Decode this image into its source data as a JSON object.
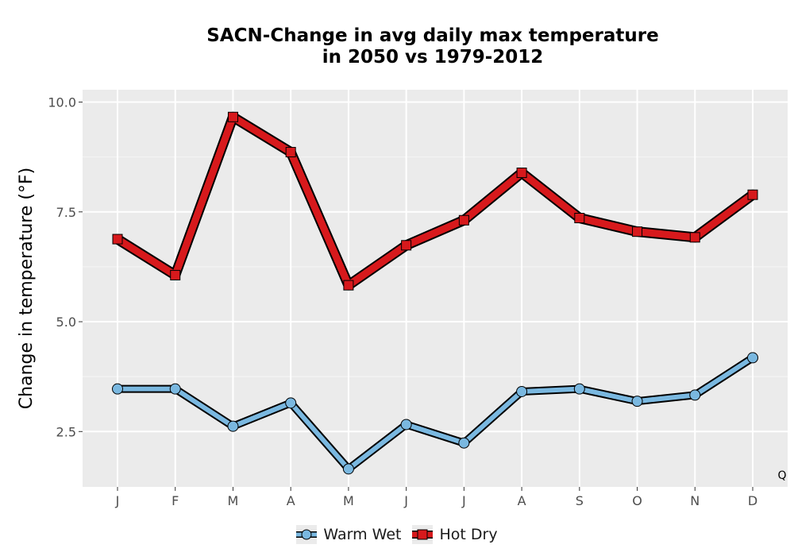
{
  "chart_data": {
    "type": "line",
    "title_lines": [
      "SACN-Change in avg daily max temperature",
      "in 2050 vs 1979-2012"
    ],
    "xlabel": "",
    "ylabel": "Change in temperature (°F)",
    "categories": [
      "J",
      "F",
      "M",
      "A",
      "M",
      "J",
      "J",
      "A",
      "S",
      "O",
      "N",
      "D"
    ],
    "ylim": [
      1.24,
      10.28
    ],
    "yticks": [
      2.5,
      5.0,
      7.5,
      10.0
    ],
    "ytick_labels": [
      "2.5",
      "5.0",
      "7.5",
      "10.0"
    ],
    "grid": true,
    "legend_position": "bottom",
    "corner_label": "Q",
    "series": [
      {
        "name": "Warm Wet",
        "marker": "circle",
        "color": "#7ab8e0",
        "values": [
          3.47,
          3.47,
          2.62,
          3.15,
          1.65,
          2.66,
          2.24,
          3.41,
          3.47,
          3.19,
          3.33,
          4.18
        ]
      },
      {
        "name": "Hot Dry",
        "marker": "square",
        "color": "#d7191c",
        "values": [
          6.88,
          6.06,
          9.66,
          8.86,
          5.83,
          6.74,
          7.31,
          8.39,
          7.36,
          7.05,
          6.92,
          7.89
        ]
      }
    ]
  }
}
